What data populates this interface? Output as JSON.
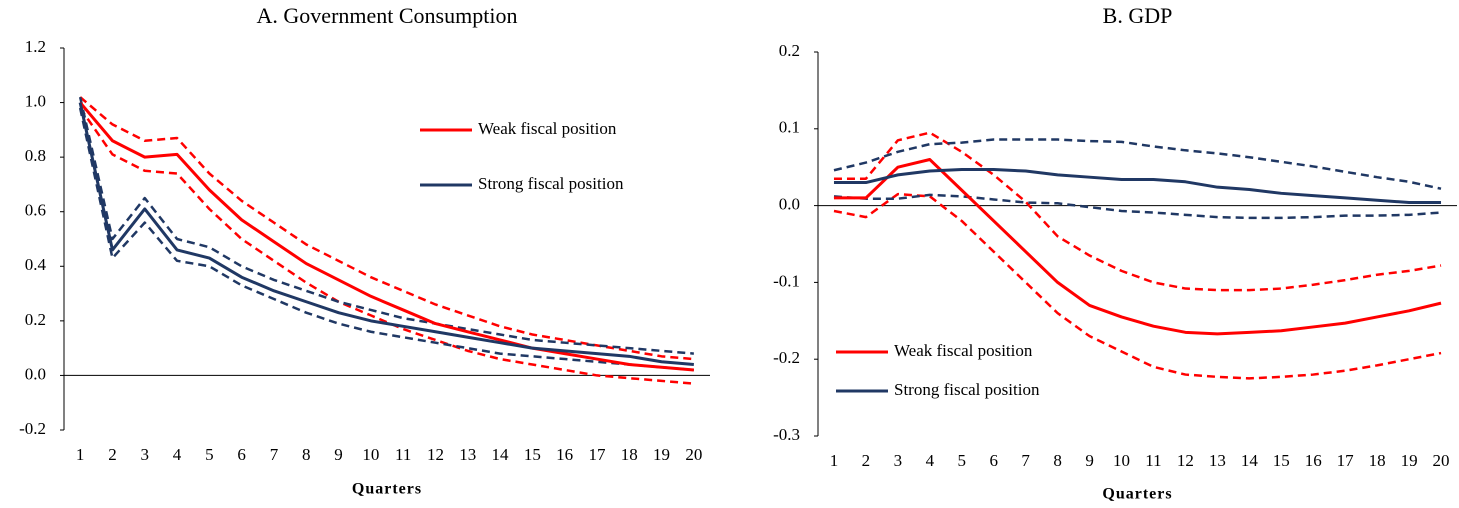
{
  "chart_data": [
    {
      "type": "line",
      "title": "A. Government Consumption",
      "x_label": "Quarters",
      "categories": [
        "1",
        "2",
        "3",
        "4",
        "5",
        "6",
        "7",
        "8",
        "9",
        "10",
        "11",
        "12",
        "13",
        "14",
        "15",
        "16",
        "17",
        "18",
        "19",
        "20"
      ],
      "ylim": [
        -0.2,
        1.2
      ],
      "yticks": [
        -0.2,
        {
          "value": 0,
          "label": "0.0"
        },
        0.2,
        0.4,
        0.6,
        0.8,
        {
          "value": 1,
          "label": "1.0"
        },
        1.2
      ],
      "legend": "upper right",
      "series": [
        {
          "name": "Weak fiscal position",
          "color": "#ff0000",
          "dashed": false,
          "values": [
            1.0,
            0.86,
            0.8,
            0.81,
            0.68,
            0.57,
            0.49,
            0.41,
            0.35,
            0.29,
            0.24,
            0.19,
            0.16,
            0.13,
            0.1,
            0.08,
            0.06,
            0.04,
            0.03,
            0.02
          ]
        },
        {
          "name": "Strong fiscal position",
          "color": "#203864",
          "dashed": false,
          "values": [
            1.0,
            0.46,
            0.61,
            0.46,
            0.43,
            0.36,
            0.31,
            0.27,
            0.23,
            0.2,
            0.18,
            0.16,
            0.14,
            0.12,
            0.1,
            0.09,
            0.08,
            0.07,
            0.05,
            0.04
          ]
        },
        {
          "color": "#ff0000",
          "dashed": true,
          "values": [
            1.02,
            0.92,
            0.86,
            0.87,
            0.74,
            0.64,
            0.56,
            0.48,
            0.42,
            0.36,
            0.31,
            0.26,
            0.22,
            0.18,
            0.15,
            0.13,
            0.11,
            0.09,
            0.07,
            0.06
          ]
        },
        {
          "color": "#ff0000",
          "dashed": true,
          "values": [
            0.98,
            0.81,
            0.75,
            0.74,
            0.61,
            0.5,
            0.42,
            0.34,
            0.27,
            0.22,
            0.17,
            0.13,
            0.09,
            0.06,
            0.04,
            0.02,
            0.0,
            -0.01,
            -0.02,
            -0.03
          ]
        },
        {
          "color": "#203864",
          "dashed": true,
          "values": [
            1.02,
            0.5,
            0.65,
            0.5,
            0.47,
            0.4,
            0.35,
            0.31,
            0.27,
            0.24,
            0.21,
            0.19,
            0.17,
            0.15,
            0.13,
            0.12,
            0.11,
            0.1,
            0.09,
            0.08
          ]
        },
        {
          "color": "#203864",
          "dashed": true,
          "values": [
            0.98,
            0.43,
            0.56,
            0.42,
            0.4,
            0.33,
            0.28,
            0.23,
            0.19,
            0.16,
            0.14,
            0.12,
            0.1,
            0.08,
            0.07,
            0.06,
            0.05,
            0.04,
            0.03,
            0.02
          ]
        }
      ]
    },
    {
      "type": "line",
      "title": "B. GDP",
      "x_label": "Quarters",
      "categories": [
        "1",
        "2",
        "3",
        "4",
        "5",
        "6",
        "7",
        "8",
        "9",
        "10",
        "11",
        "12",
        "13",
        "14",
        "15",
        "16",
        "17",
        "18",
        "19",
        "20"
      ],
      "ylim": [
        -0.3,
        0.2
      ],
      "yticks": [
        -0.3,
        -0.2,
        -0.1,
        {
          "value": 0,
          "label": "0.0"
        },
        0.1,
        0.2
      ],
      "legend": "lower left",
      "series": [
        {
          "name": "Weak fiscal position",
          "color": "#ff0000",
          "dashed": false,
          "values": [
            0.01,
            0.01,
            0.05,
            0.06,
            0.02,
            -0.02,
            -0.06,
            -0.1,
            -0.13,
            -0.145,
            -0.157,
            -0.165,
            -0.167,
            -0.165,
            -0.163,
            -0.158,
            -0.153,
            -0.145,
            -0.137,
            -0.127
          ]
        },
        {
          "name": "Strong fiscal position",
          "color": "#203864",
          "dashed": false,
          "values": [
            0.03,
            0.03,
            0.04,
            0.045,
            0.047,
            0.047,
            0.045,
            0.04,
            0.037,
            0.034,
            0.034,
            0.031,
            0.024,
            0.021,
            0.016,
            0.013,
            0.01,
            0.007,
            0.004,
            0.004
          ]
        },
        {
          "color": "#ff0000",
          "dashed": true,
          "values": [
            0.035,
            0.035,
            0.085,
            0.095,
            0.07,
            0.04,
            0.005,
            -0.04,
            -0.065,
            -0.085,
            -0.1,
            -0.108,
            -0.11,
            -0.11,
            -0.108,
            -0.103,
            -0.097,
            -0.09,
            -0.085,
            -0.078
          ]
        },
        {
          "color": "#ff0000",
          "dashed": true,
          "values": [
            -0.007,
            -0.015,
            0.015,
            0.012,
            -0.02,
            -0.06,
            -0.1,
            -0.14,
            -0.17,
            -0.19,
            -0.21,
            -0.22,
            -0.223,
            -0.225,
            -0.223,
            -0.22,
            -0.215,
            -0.208,
            -0.2,
            -0.192
          ]
        },
        {
          "color": "#203864",
          "dashed": true,
          "values": [
            0.046,
            0.056,
            0.07,
            0.08,
            0.082,
            0.086,
            0.086,
            0.086,
            0.084,
            0.083,
            0.077,
            0.072,
            0.068,
            0.063,
            0.057,
            0.051,
            0.044,
            0.037,
            0.031,
            0.022
          ]
        },
        {
          "color": "#203864",
          "dashed": true,
          "values": [
            0.012,
            0.009,
            0.009,
            0.014,
            0.012,
            0.008,
            0.004,
            0.003,
            -0.002,
            -0.007,
            -0.009,
            -0.012,
            -0.015,
            -0.016,
            -0.016,
            -0.015,
            -0.013,
            -0.013,
            -0.012,
            -0.009
          ]
        }
      ]
    }
  ]
}
